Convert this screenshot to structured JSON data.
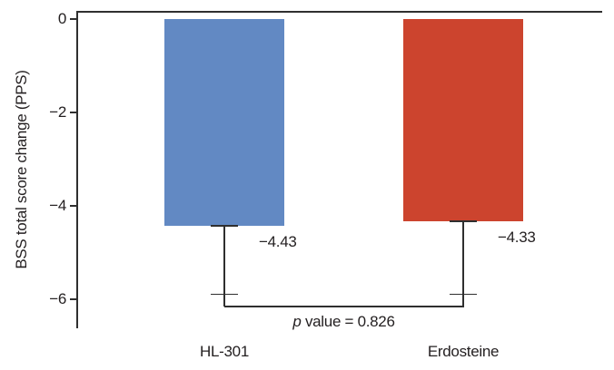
{
  "chart_data": {
    "type": "bar",
    "title": "",
    "xlabel": "",
    "ylabel": "BSS total score change (PPS)",
    "categories": [
      "HL-301",
      "Erdosteine"
    ],
    "values": [
      -4.43,
      -4.33
    ],
    "value_labels": [
      "−4.43",
      "−4.33"
    ],
    "error_low": [
      -5.9,
      -5.9
    ],
    "bar_colors": [
      "#6289c3",
      "#cc442e"
    ],
    "line_color": "#2f2f2f",
    "yticks": {
      "values": [
        0,
        -2,
        -4,
        -6
      ],
      "labels": [
        "0",
        "−2",
        "−4",
        "−6"
      ]
    },
    "ylim": [
      0.16,
      -6.6
    ],
    "grid": false,
    "legend": false,
    "annotation": {
      "italic": "p",
      "rest": " value = 0.826"
    }
  }
}
